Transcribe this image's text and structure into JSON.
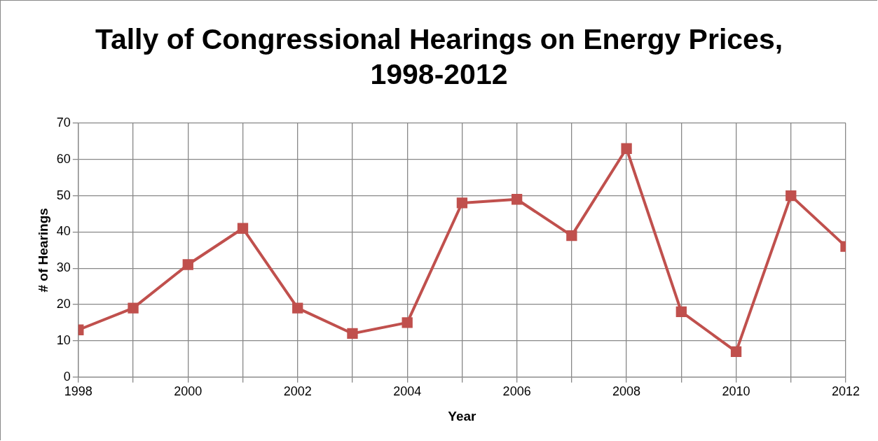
{
  "chart_data": {
    "type": "line",
    "title": "Tally of Congressional Hearings on Energy Prices, 1998-2012",
    "xlabel": "Year",
    "ylabel": "# of Hearings",
    "x": [
      1998,
      1999,
      2000,
      2001,
      2002,
      2003,
      2004,
      2005,
      2006,
      2007,
      2008,
      2009,
      2010,
      2011,
      2012
    ],
    "series": [
      {
        "color": "#c0504d",
        "values": [
          13,
          19,
          31,
          41,
          19,
          12,
          15,
          48,
          49,
          39,
          63,
          18,
          7,
          50,
          36
        ]
      }
    ],
    "xlim": [
      1998,
      2012
    ],
    "xticks": [
      1998,
      {
        "value": 1999,
        "label": null
      },
      2000,
      {
        "value": 2001,
        "label": null
      },
      2002,
      {
        "value": 2003,
        "label": null
      },
      2004,
      {
        "value": 2005,
        "label": null
      },
      2006,
      {
        "value": 2007,
        "label": null
      },
      2008,
      {
        "value": 2009,
        "label": null
      },
      2010,
      {
        "value": 2011,
        "label": null
      },
      2012
    ],
    "ylim": [
      0,
      70
    ],
    "yticks": [
      0,
      10,
      20,
      30,
      40,
      50,
      60,
      70
    ],
    "grid": true,
    "legend": false,
    "marker": "square",
    "line_style": "solid"
  }
}
